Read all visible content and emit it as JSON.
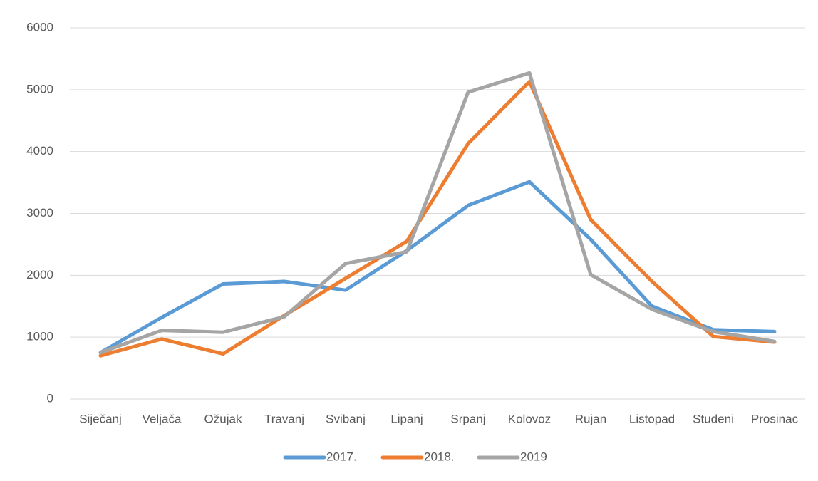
{
  "chart_data": {
    "type": "line",
    "categories": [
      "Siječanj",
      "Veljača",
      "Ožujak",
      "Travanj",
      "Svibanj",
      "Lipanj",
      "Srpanj",
      "Kolovoz",
      "Rujan",
      "Listopad",
      "Studeni",
      "Prosinac"
    ],
    "series": [
      {
        "name": "2017.",
        "color": "#5b9bd5",
        "values": [
          750,
          1320,
          1860,
          1900,
          1760,
          2400,
          3130,
          3510,
          2580,
          1500,
          1120,
          1090
        ]
      },
      {
        "name": "2018.",
        "color": "#ed7d31",
        "values": [
          700,
          970,
          730,
          1350,
          1950,
          2550,
          4130,
          5130,
          2900,
          1900,
          1010,
          920
        ]
      },
      {
        "name": "2019",
        "color": "#a5a5a5",
        "values": [
          750,
          1110,
          1080,
          1330,
          2190,
          2380,
          4960,
          5270,
          2010,
          1450,
          1090,
          930
        ]
      }
    ],
    "ylim": [
      0,
      6000
    ],
    "yticks": [
      0,
      1000,
      2000,
      3000,
      4000,
      5000,
      6000
    ],
    "grid": true,
    "legend": "bottom"
  }
}
